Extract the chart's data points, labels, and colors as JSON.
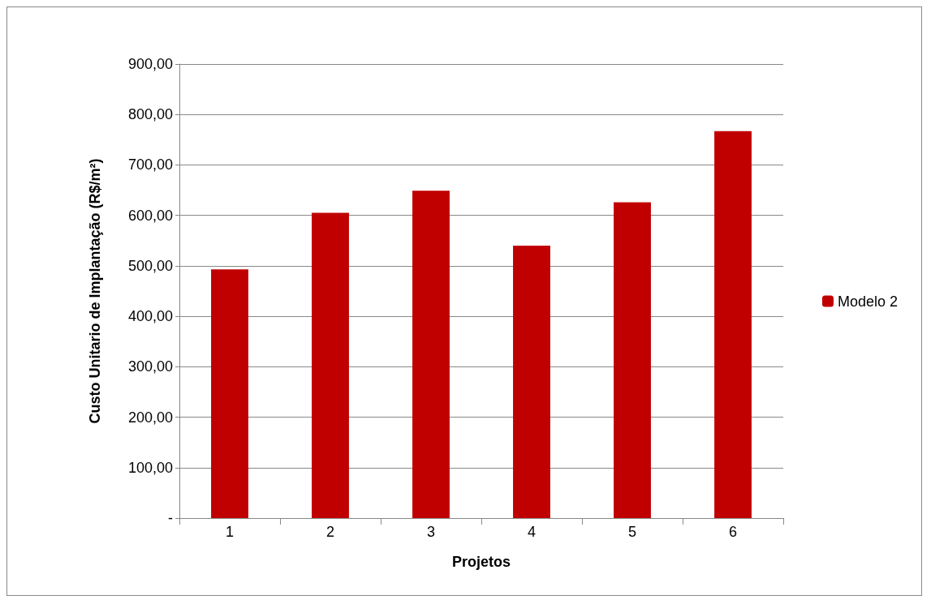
{
  "chart_data": {
    "type": "bar",
    "xlabel": "Projetos",
    "ylabel": "Custo Unitario de Implantação (R$/m²)",
    "categories": [
      "1",
      "2",
      "3",
      "4",
      "5",
      "6"
    ],
    "series": [
      {
        "name": "Modelo 2",
        "color": "#c00000",
        "values": [
          493,
          605,
          649,
          540,
          626,
          767
        ]
      }
    ],
    "ylim": [
      0,
      900
    ],
    "yticks": [
      {
        "value": 0,
        "label": "-"
      },
      {
        "value": 100,
        "label": "100,00"
      },
      {
        "value": 200,
        "label": "200,00"
      },
      {
        "value": 300,
        "label": "300,00"
      },
      {
        "value": 400,
        "label": "400,00"
      },
      {
        "value": 500,
        "label": "500,00"
      },
      {
        "value": 600,
        "label": "600,00"
      },
      {
        "value": 700,
        "label": "700,00"
      },
      {
        "value": 800,
        "label": "800,00"
      },
      {
        "value": 900,
        "label": "900,00"
      }
    ],
    "grid": "y",
    "legend": "right"
  }
}
